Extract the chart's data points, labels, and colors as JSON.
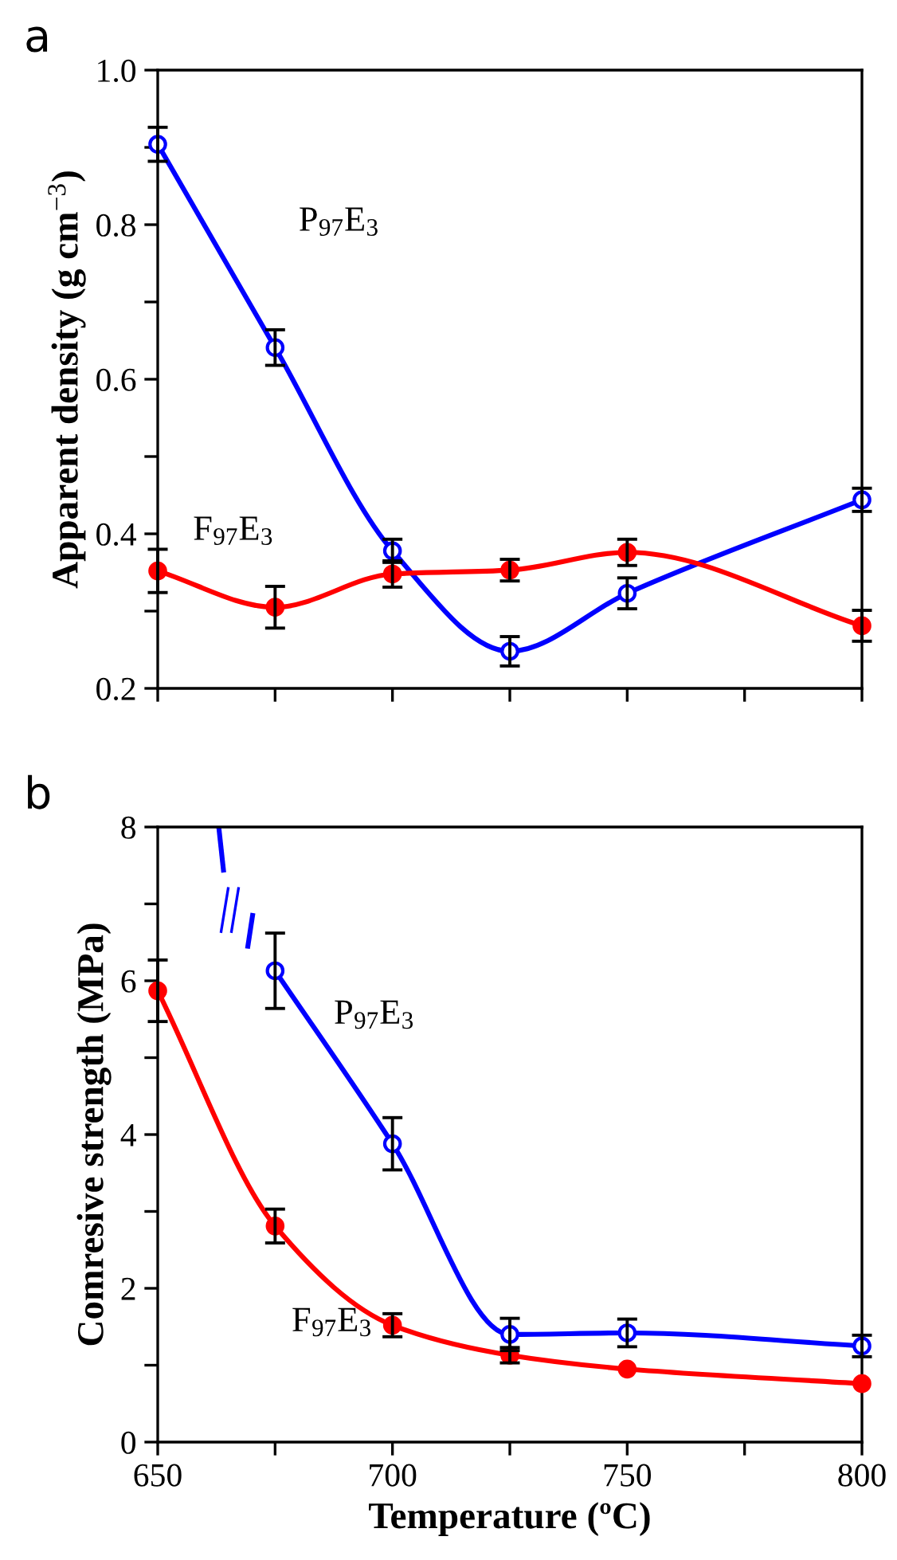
{
  "chart_data": [
    {
      "type": "line",
      "title": "a",
      "ylabel": "Apparent density (g cm$^{−3}$)",
      "x": [
        650,
        675,
        700,
        725,
        750,
        800
      ],
      "xlim": [
        650,
        800
      ],
      "xticks": [
        650,
        675,
        700,
        725,
        750,
        775,
        800
      ],
      "tick_labels": "y",
      "ylim": [
        0.2,
        1.0
      ],
      "yticks": [
        0.2,
        {
          "value": 0.3,
          "label": null
        },
        0.4,
        {
          "value": 0.5,
          "label": null
        },
        0.6,
        {
          "value": 0.7,
          "label": null
        },
        0.8,
        {
          "value": 0.9,
          "label": null
        },
        "1.0"
      ],
      "marker": "circle",
      "grid": false,
      "legend": false,
      "series": [
        {
          "name": "P$_{97}$E$_{3}$",
          "color": "#0000ff",
          "values": [
            0.904,
            0.641,
            0.378,
            0.248,
            0.323,
            0.444
          ],
          "errors": [
            0.022,
            0.023,
            0.015,
            0.019,
            0.02,
            0.015
          ]
        },
        {
          "name": "F$_{97}$E$_{3}$",
          "color": "#ff0000",
          "values": [
            0.352,
            0.305,
            0.348,
            0.353,
            0.376,
            0.281
          ],
          "errors": [
            0.028,
            0.027,
            0.017,
            0.014,
            0.017,
            0.02
          ]
        }
      ]
    },
    {
      "type": "line",
      "title": "b",
      "xlabel": "Temperature (ºC)",
      "ylabel": "Comresive strength (MPa)",
      "x": [
        650,
        675,
        700,
        725,
        750,
        800
      ],
      "xlim": [
        650,
        800
      ],
      "xticks": [
        650,
        {
          "value": 675,
          "label": null
        },
        700,
        {
          "value": 725,
          "label": null
        },
        750,
        {
          "value": 775,
          "label": null
        },
        800
      ],
      "ylim": [
        0,
        8
      ],
      "yticks": [
        0,
        {
          "value": 1,
          "label": null
        },
        2,
        {
          "value": 3,
          "label": null
        },
        4,
        {
          "value": 5,
          "label": null
        },
        6,
        {
          "value": 7,
          "label": null
        },
        8
      ],
      "marker": "circle",
      "grid": false,
      "legend": false,
      "series": [
        {
          "name": "P$_{97}$E$_{3}$",
          "color": "#0000ff",
          "values": [
            null,
            6.13,
            3.88,
            1.4,
            1.42,
            1.25
          ],
          "errors": [
            null,
            0.49,
            0.34,
            0.21,
            0.18,
            0.14
          ]
        },
        {
          "name": "F$_{97}$E$_{3}$",
          "color": "#ff0000",
          "values": [
            5.87,
            2.81,
            1.52,
            1.13,
            0.95,
            0.76
          ],
          "errors": [
            0.4,
            0.22,
            0.15,
            0.1,
            null,
            null
          ]
        }
      ]
    }
  ]
}
